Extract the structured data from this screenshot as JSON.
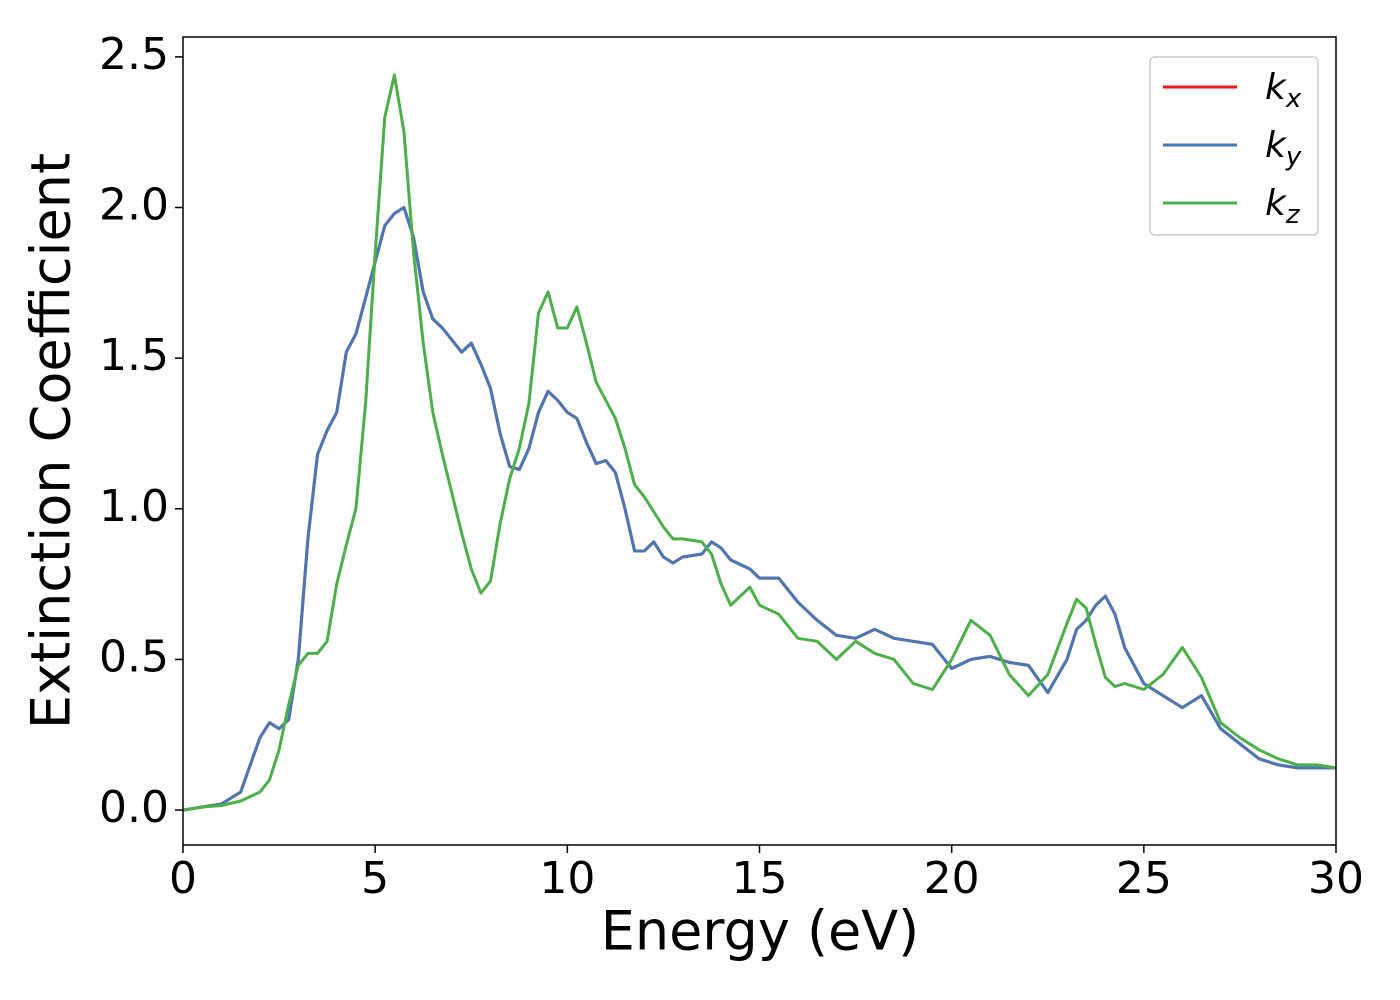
{
  "chart_data": {
    "type": "line",
    "xlabel": "Energy (eV)",
    "ylabel": "Extinction Coefficient",
    "x": [
      0,
      0.5,
      1,
      1.5,
      2,
      2.25,
      2.5,
      2.75,
      3,
      3.25,
      3.5,
      3.75,
      4,
      4.25,
      4.5,
      4.75,
      5,
      5.25,
      5.5,
      5.75,
      6,
      6.25,
      6.5,
      6.75,
      7,
      7.25,
      7.5,
      7.75,
      8,
      8.25,
      8.5,
      8.75,
      9,
      9.25,
      9.5,
      9.75,
      10,
      10.25,
      10.5,
      10.75,
      11,
      11.25,
      11.5,
      11.75,
      12,
      12.25,
      12.5,
      12.75,
      13,
      13.5,
      13.75,
      14,
      14.25,
      14.75,
      15,
      15.5,
      16,
      16.5,
      17,
      17.5,
      18,
      18.5,
      19,
      19.5,
      20,
      20.5,
      21,
      21.5,
      22,
      22.5,
      23,
      23.25,
      23.5,
      23.75,
      24,
      24.25,
      24.5,
      25,
      25.5,
      26,
      26.5,
      27,
      27.5,
      28,
      28.5,
      29,
      29.5,
      30
    ],
    "series": [
      {
        "name": "kx",
        "color": "#e41a1c",
        "values": [
          0,
          0.01,
          0.02,
          0.06,
          0.24,
          0.29,
          0.27,
          0.3,
          0.5,
          0.9,
          1.18,
          1.26,
          1.32,
          1.52,
          1.58,
          1.7,
          1.82,
          1.94,
          1.98,
          2.0,
          1.9,
          1.72,
          1.63,
          1.6,
          1.56,
          1.52,
          1.55,
          1.48,
          1.4,
          1.25,
          1.14,
          1.13,
          1.2,
          1.32,
          1.39,
          1.36,
          1.32,
          1.3,
          1.22,
          1.15,
          1.16,
          1.12,
          1.0,
          0.86,
          0.86,
          0.89,
          0.84,
          0.82,
          0.84,
          0.85,
          0.89,
          0.87,
          0.83,
          0.8,
          0.77,
          0.77,
          0.69,
          0.63,
          0.58,
          0.57,
          0.6,
          0.57,
          0.56,
          0.55,
          0.47,
          0.5,
          0.51,
          0.49,
          0.48,
          0.39,
          0.5,
          0.6,
          0.63,
          0.68,
          0.71,
          0.65,
          0.54,
          0.42,
          0.38,
          0.34,
          0.38,
          0.27,
          0.22,
          0.17,
          0.15,
          0.14,
          0.14,
          0.14
        ]
      },
      {
        "name": "ky",
        "color": "#4a78b4",
        "values": [
          0,
          0.01,
          0.02,
          0.06,
          0.24,
          0.29,
          0.27,
          0.3,
          0.5,
          0.9,
          1.18,
          1.26,
          1.32,
          1.52,
          1.58,
          1.7,
          1.82,
          1.94,
          1.98,
          2.0,
          1.9,
          1.72,
          1.63,
          1.6,
          1.56,
          1.52,
          1.55,
          1.48,
          1.4,
          1.25,
          1.14,
          1.13,
          1.2,
          1.32,
          1.39,
          1.36,
          1.32,
          1.3,
          1.22,
          1.15,
          1.16,
          1.12,
          1.0,
          0.86,
          0.86,
          0.89,
          0.84,
          0.82,
          0.84,
          0.85,
          0.89,
          0.87,
          0.83,
          0.8,
          0.77,
          0.77,
          0.69,
          0.63,
          0.58,
          0.57,
          0.6,
          0.57,
          0.56,
          0.55,
          0.47,
          0.5,
          0.51,
          0.49,
          0.48,
          0.39,
          0.5,
          0.6,
          0.63,
          0.68,
          0.71,
          0.65,
          0.54,
          0.42,
          0.38,
          0.34,
          0.38,
          0.27,
          0.22,
          0.17,
          0.15,
          0.14,
          0.14,
          0.14
        ]
      },
      {
        "name": "kz",
        "color": "#4daf4a",
        "values": [
          0,
          0.01,
          0.015,
          0.03,
          0.06,
          0.1,
          0.2,
          0.35,
          0.48,
          0.52,
          0.52,
          0.56,
          0.75,
          0.88,
          1.0,
          1.35,
          1.85,
          2.3,
          2.44,
          2.25,
          1.85,
          1.55,
          1.32,
          1.18,
          1.05,
          0.92,
          0.8,
          0.72,
          0.76,
          0.95,
          1.1,
          1.2,
          1.35,
          1.65,
          1.72,
          1.6,
          1.6,
          1.67,
          1.55,
          1.42,
          1.36,
          1.3,
          1.2,
          1.08,
          1.04,
          0.99,
          0.94,
          0.9,
          0.9,
          0.89,
          0.85,
          0.75,
          0.68,
          0.74,
          0.68,
          0.65,
          0.57,
          0.56,
          0.5,
          0.56,
          0.52,
          0.5,
          0.42,
          0.4,
          0.5,
          0.63,
          0.58,
          0.45,
          0.38,
          0.45,
          0.62,
          0.7,
          0.67,
          0.55,
          0.44,
          0.41,
          0.42,
          0.4,
          0.45,
          0.54,
          0.44,
          0.29,
          0.24,
          0.2,
          0.17,
          0.15,
          0.15,
          0.14
        ]
      }
    ],
    "xlim": [
      0,
      30
    ],
    "xticks": [
      0,
      5,
      10,
      15,
      20,
      25,
      30
    ],
    "ylim": [
      -0.116,
      2.566
    ],
    "yticks": [
      {
        "value": 0,
        "label": "0.0"
      },
      0.5,
      {
        "value": 1,
        "label": "1.0"
      },
      1.5,
      {
        "value": 2,
        "label": "2.0"
      },
      2.5
    ],
    "legend": "upper right"
  }
}
